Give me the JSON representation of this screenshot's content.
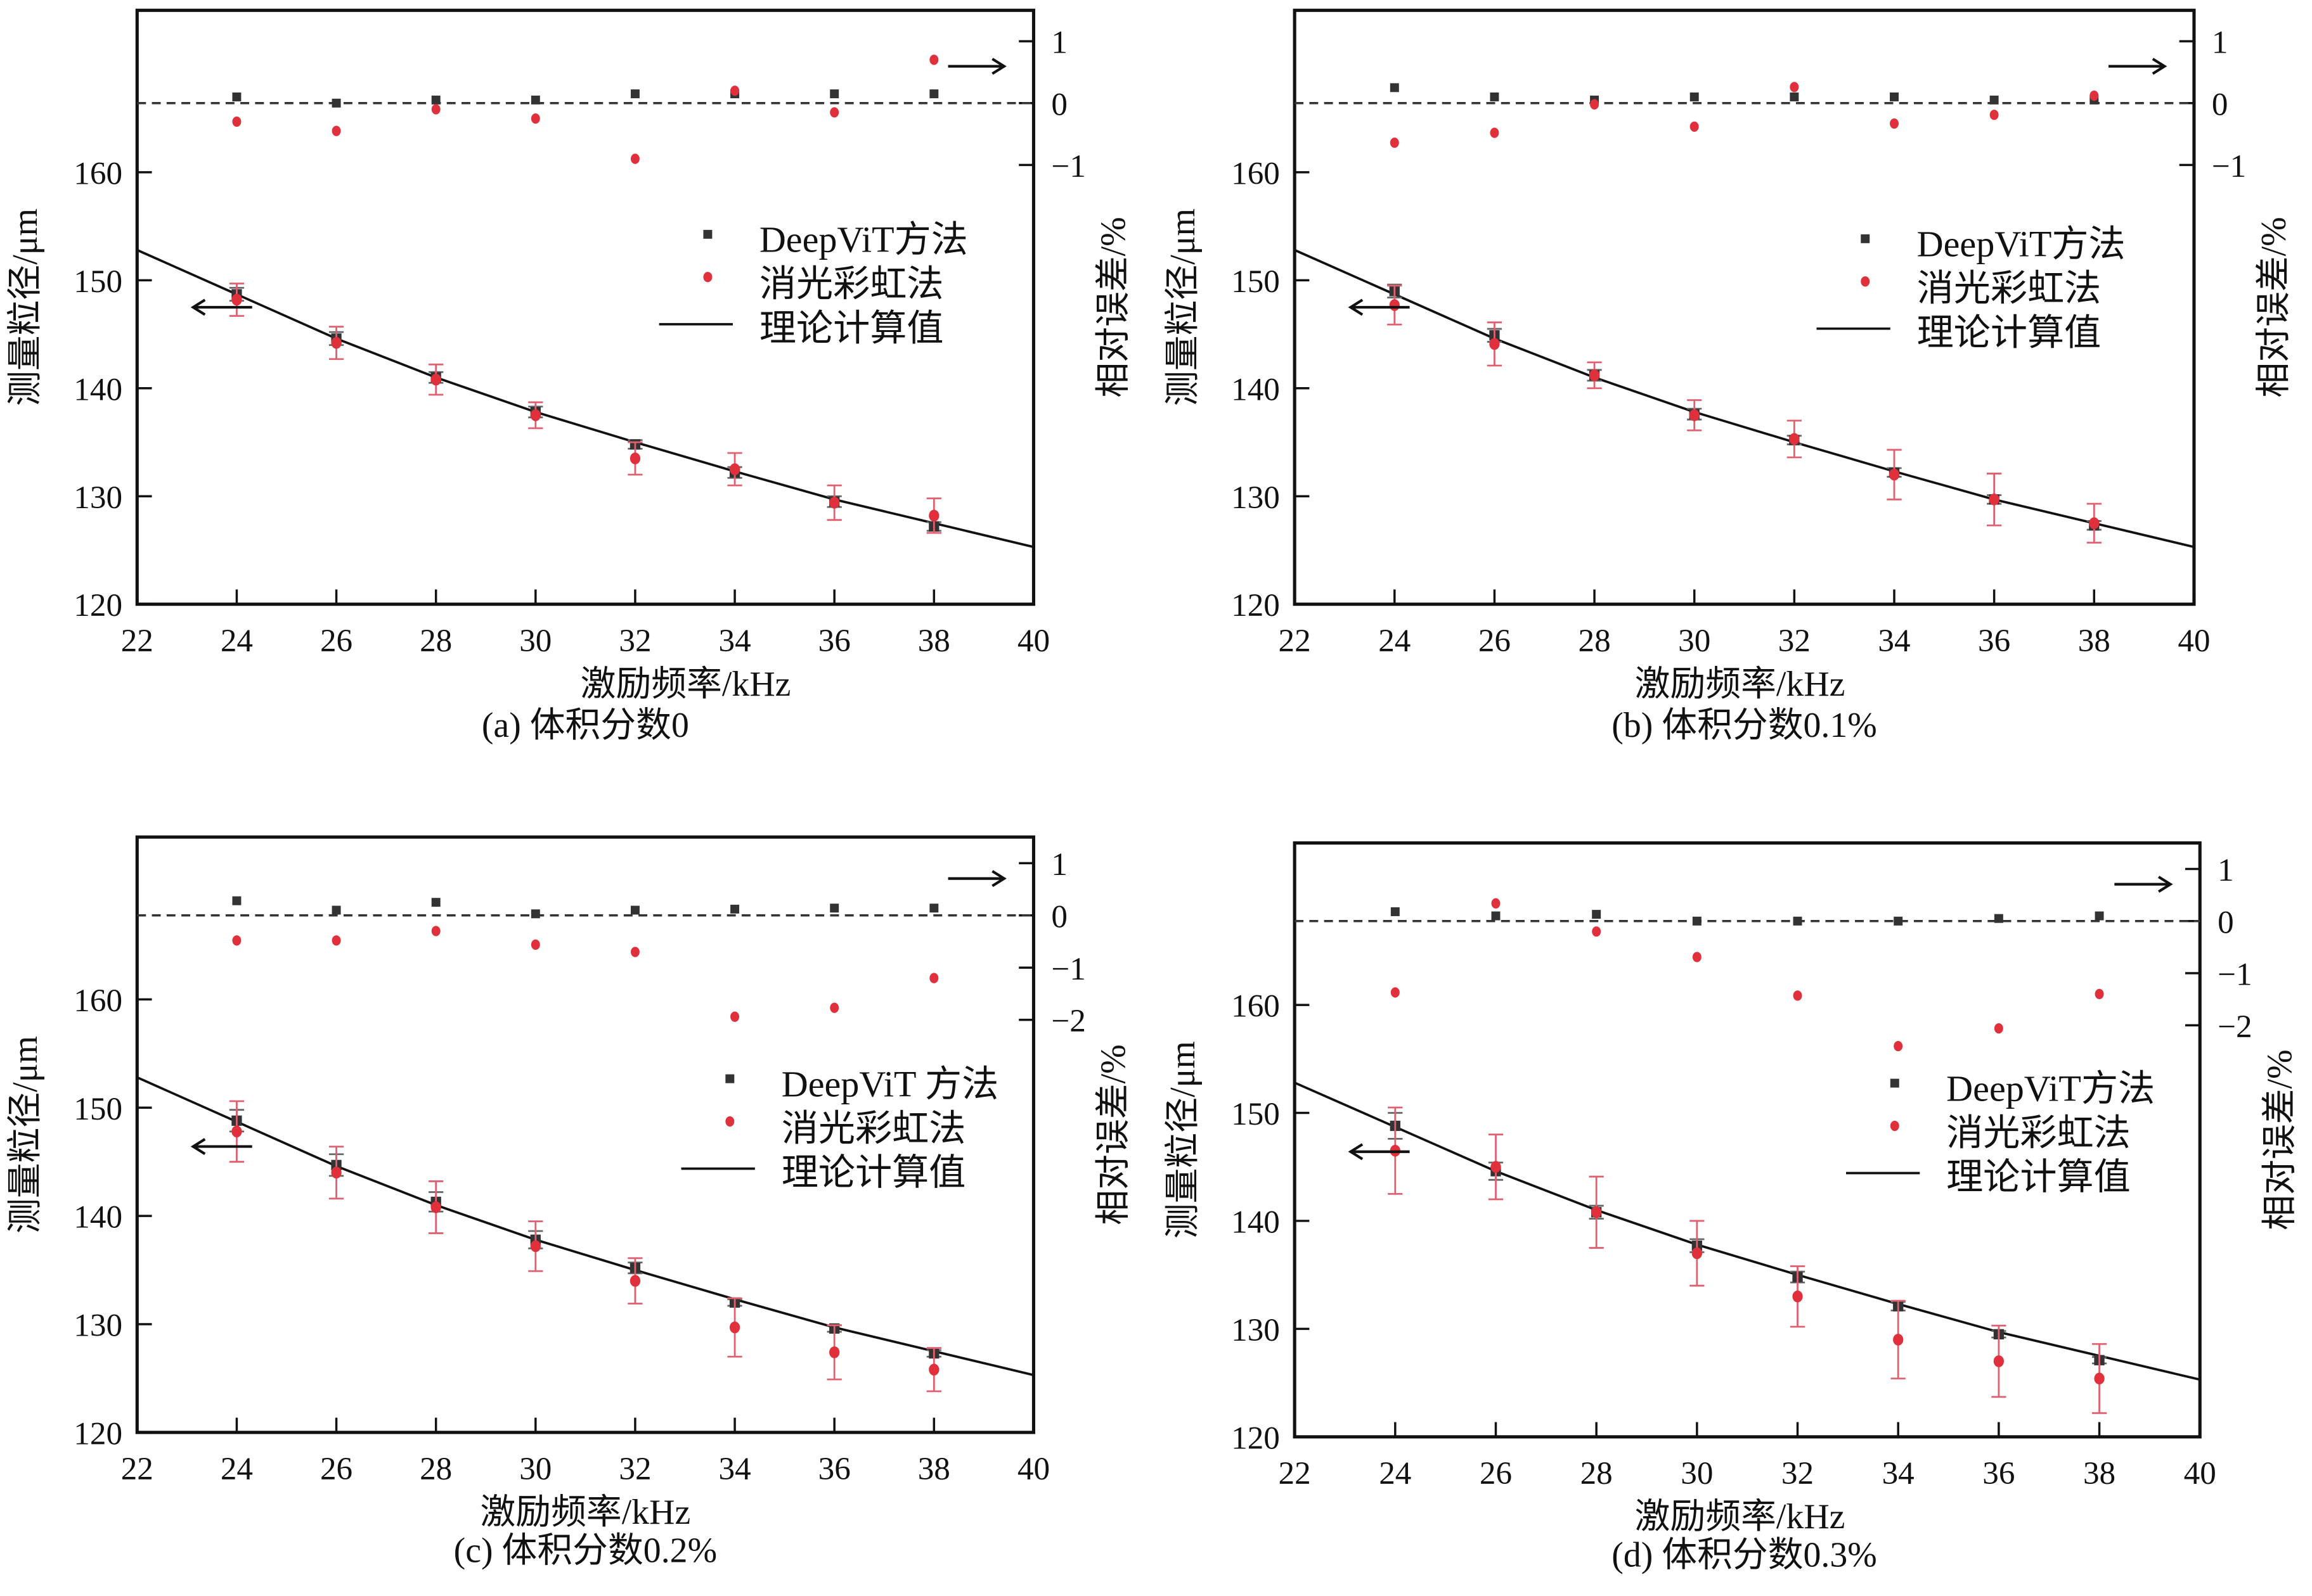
{
  "chart_data": [
    {
      "type": "scatter",
      "caption": "(a) 体积分数0",
      "xlabel": "激励频率/kHz",
      "ylabel": "测量粒径/μm",
      "ylabel_right": "相对误差/%",
      "xlim": [
        22,
        40
      ],
      "ylim": [
        120,
        175
      ],
      "ylim_right": [
        -8.1,
        1.5
      ],
      "xticks": [
        22,
        24,
        26,
        28,
        30,
        32,
        34,
        36,
        38,
        40
      ],
      "yticks": [
        120,
        130,
        140,
        150,
        160
      ],
      "yticks_right": [
        1,
        0,
        -1
      ],
      "legend": [
        "DeepViT方法",
        "消光彩虹法",
        "理论计算值"
      ],
      "legend_position": "center-right",
      "x": [
        24,
        26,
        28,
        30,
        32,
        34,
        36,
        38
      ],
      "theory": {
        "x": [
          22,
          24,
          26,
          28,
          30,
          32,
          34,
          36,
          38,
          40
        ],
        "y": [
          152.8,
          148.7,
          144.6,
          141.0,
          137.8,
          135.0,
          132.3,
          129.7,
          127.5,
          125.3
        ]
      },
      "series": [
        {
          "name": "DeepViT方法",
          "size": [
            148.7,
            144.6,
            141.0,
            137.8,
            134.8,
            132.2,
            129.5,
            127.2
          ],
          "size_err": [
            0.6,
            0.6,
            0.5,
            0.5,
            0.4,
            0.5,
            0.5,
            0.4
          ],
          "rel_error": [
            0.1,
            0.0,
            0.05,
            0.05,
            0.15,
            0.15,
            0.15,
            0.15
          ],
          "color": "#333333"
        },
        {
          "name": "消光彩虹法",
          "size": [
            148.2,
            144.2,
            140.8,
            137.5,
            133.5,
            132.5,
            129.4,
            128.2
          ],
          "size_err": [
            1.5,
            1.5,
            1.4,
            1.2,
            1.5,
            1.5,
            1.6,
            1.6
          ],
          "rel_error": [
            -0.3,
            -0.45,
            -0.1,
            -0.25,
            -0.9,
            0.2,
            -0.15,
            0.7
          ],
          "color": "#e0303c"
        }
      ]
    },
    {
      "type": "scatter",
      "caption": "(b) 体积分数0.1%",
      "xlabel": "激励频率/kHz",
      "ylabel": "测量粒径/μm",
      "ylabel_right": "相对误差/%",
      "xlim": [
        22,
        40
      ],
      "ylim": [
        120,
        175
      ],
      "ylim_right": [
        -8.1,
        1.5
      ],
      "xticks": [
        22,
        24,
        26,
        28,
        30,
        32,
        34,
        36,
        38,
        40
      ],
      "yticks": [
        120,
        130,
        140,
        150,
        160
      ],
      "yticks_right": [
        1,
        0,
        -1
      ],
      "legend": [
        "DeepViT方法",
        "消光彩虹法",
        "理论计算值"
      ],
      "legend_position": "center-right",
      "x": [
        24,
        26,
        28,
        30,
        32,
        34,
        36,
        38
      ],
      "theory": {
        "x": [
          22,
          24,
          26,
          28,
          30,
          32,
          34,
          36,
          38,
          40
        ],
        "y": [
          152.8,
          148.7,
          144.6,
          141.0,
          137.8,
          135.0,
          132.3,
          129.7,
          127.5,
          125.3
        ]
      },
      "series": [
        {
          "name": "DeepViT方法",
          "size": [
            149.0,
            144.9,
            141.2,
            137.6,
            135.2,
            132.2,
            129.7,
            127.3
          ],
          "size_err": [
            0.6,
            0.6,
            0.5,
            0.5,
            0.4,
            0.4,
            0.4,
            0.4
          ],
          "rel_error": [
            0.25,
            0.1,
            0.05,
            0.1,
            0.1,
            0.1,
            0.05,
            0.05
          ],
          "color": "#333333"
        },
        {
          "name": "消光彩虹法",
          "size": [
            147.7,
            144.1,
            141.2,
            137.5,
            135.3,
            132.0,
            129.7,
            127.5
          ],
          "size_err": [
            1.8,
            2.0,
            1.2,
            1.4,
            1.7,
            2.3,
            2.4,
            1.8
          ],
          "rel_error": [
            -0.64,
            -0.48,
            -0.02,
            -0.38,
            0.26,
            -0.33,
            -0.19,
            0.12
          ],
          "color": "#e0303c"
        }
      ]
    },
    {
      "type": "scatter",
      "caption": "(c) 体积分数0.2%",
      "xlabel": "激励频率/kHz",
      "ylabel": "测量粒径/μm",
      "ylabel_right": "相对误差/%",
      "xlim": [
        22,
        40
      ],
      "ylim": [
        120,
        175
      ],
      "ylim_right": [
        -9.9,
        1.5
      ],
      "xticks": [
        22,
        24,
        26,
        28,
        30,
        32,
        34,
        36,
        38,
        40
      ],
      "yticks": [
        120,
        130,
        140,
        150,
        160
      ],
      "yticks_right": [
        1,
        0,
        -1,
        -2
      ],
      "legend": [
        "DeepViT 方法",
        "消光彩虹法",
        "理论计算值"
      ],
      "legend_position": "center-right",
      "x": [
        24,
        26,
        28,
        30,
        32,
        34,
        36,
        38
      ],
      "theory": {
        "x": [
          22,
          24,
          26,
          28,
          30,
          32,
          34,
          36,
          38,
          40
        ],
        "y": [
          152.8,
          148.7,
          144.6,
          141.0,
          137.8,
          135.0,
          132.3,
          129.7,
          127.5,
          125.3
        ]
      },
      "series": [
        {
          "name": "DeepViT 方法",
          "size": [
            148.8,
            144.7,
            141.3,
            137.8,
            135.2,
            132.0,
            129.6,
            127.3
          ],
          "size_err": [
            1.0,
            1.0,
            0.9,
            0.8,
            0.5,
            0.3,
            0.3,
            0.3
          ],
          "rel_error": [
            0.28,
            0.1,
            0.25,
            0.03,
            0.1,
            0.12,
            0.14,
            0.14
          ],
          "color": "#333333"
        },
        {
          "name": "消光彩虹法",
          "size": [
            147.8,
            144.0,
            140.8,
            137.2,
            134.0,
            129.7,
            127.4,
            125.8
          ],
          "size_err": [
            2.8,
            2.4,
            2.4,
            2.3,
            2.1,
            2.7,
            2.5,
            2.0
          ],
          "rel_error": [
            -0.48,
            -0.48,
            -0.3,
            -0.56,
            -0.7,
            -1.94,
            -1.77,
            -1.2
          ],
          "color": "#e0303c"
        }
      ]
    },
    {
      "type": "scatter",
      "caption": "(d) 体积分数0.3%",
      "xlabel": "激励频率/kHz",
      "ylabel": "测量粒径/μm",
      "ylabel_right": "相对误差/%",
      "xlim": [
        22,
        40
      ],
      "ylim": [
        120,
        175
      ],
      "ylim_right": [
        -9.9,
        1.5
      ],
      "xticks": [
        22,
        24,
        26,
        28,
        30,
        32,
        34,
        36,
        38,
        40
      ],
      "yticks": [
        120,
        130,
        140,
        150,
        160
      ],
      "yticks_right": [
        1,
        0,
        -1,
        -2
      ],
      "legend": [
        "DeepViT方法",
        "消光彩虹法",
        "理论计算值"
      ],
      "legend_position": "center-right",
      "x": [
        24,
        26,
        28,
        30,
        32,
        34,
        36,
        38
      ],
      "theory": {
        "x": [
          22,
          24,
          26,
          28,
          30,
          32,
          34,
          36,
          38,
          40
        ],
        "y": [
          152.8,
          148.7,
          144.6,
          141.0,
          137.8,
          135.0,
          132.3,
          129.7,
          127.5,
          125.3
        ]
      },
      "series": [
        {
          "name": "DeepViT方法",
          "size": [
            148.8,
            144.6,
            140.8,
            137.7,
            134.8,
            132.1,
            129.5,
            127.1
          ],
          "size_err": [
            1.2,
            0.8,
            0.6,
            0.6,
            0.5,
            0.4,
            0.3,
            0.3
          ],
          "rel_error": [
            0.18,
            0.1,
            0.13,
            0.0,
            0.0,
            0.0,
            0.05,
            0.1
          ],
          "color": "#333333"
        },
        {
          "name": "消光彩虹法",
          "size": [
            146.5,
            145.0,
            140.8,
            137.0,
            133.0,
            129.0,
            127.0,
            125.4
          ],
          "size_err": [
            4.0,
            3.0,
            3.3,
            3.0,
            2.8,
            3.6,
            3.3,
            3.2
          ],
          "rel_error": [
            -1.37,
            0.34,
            -0.2,
            -0.69,
            -1.43,
            -2.4,
            -2.06,
            -1.4
          ],
          "color": "#e0303c"
        }
      ]
    }
  ]
}
